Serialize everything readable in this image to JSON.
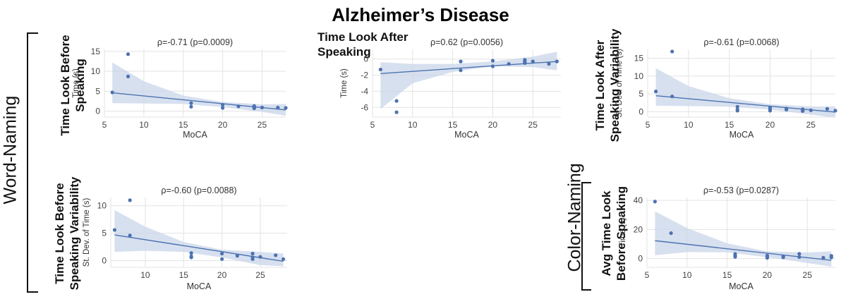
{
  "title": "Alzheimer’s Disease",
  "groups": {
    "word": "Word-Naming",
    "color": "Color-Naming"
  },
  "colors": {
    "line": "#4c72b0",
    "band": "#c9d5ea",
    "point": "#4c72b0",
    "grid": "#e3e3e3",
    "axis": "#888888"
  },
  "chart_data": [
    {
      "id": "p1",
      "type": "scatter",
      "title": "ρ=-0.71 (p=0.0009)",
      "row_label": [
        "Time Look Before",
        "Speaking"
      ],
      "xlabel": "MoCA",
      "ylabel": "Time (s)",
      "xlim": [
        5,
        28
      ],
      "ylim": [
        -1.5,
        15.5
      ],
      "xticks": [
        5,
        10,
        15,
        20,
        25
      ],
      "yticks": [
        0,
        5,
        10,
        15
      ],
      "points": [
        [
          6,
          4.7
        ],
        [
          8,
          14.3
        ],
        [
          8,
          8.7
        ],
        [
          16,
          2.0
        ],
        [
          16,
          1.1
        ],
        [
          20,
          1.6
        ],
        [
          20,
          0.8
        ],
        [
          22,
          1.2
        ],
        [
          24,
          1.3
        ],
        [
          24,
          0.9
        ],
        [
          24,
          0.7
        ],
        [
          25,
          0.9
        ],
        [
          27,
          0.9
        ],
        [
          28,
          0.8
        ]
      ],
      "fit": [
        [
          6,
          4.6
        ],
        [
          28,
          0.3
        ]
      ],
      "ci_upper": [
        [
          6,
          12.2
        ],
        [
          10,
          7.5
        ],
        [
          15,
          3.9
        ],
        [
          20,
          2.3
        ],
        [
          25,
          1.7
        ],
        [
          28,
          1.8
        ]
      ],
      "ci_lower": [
        [
          6,
          2.0
        ],
        [
          10,
          1.9
        ],
        [
          15,
          1.8
        ],
        [
          20,
          1.0
        ],
        [
          25,
          -0.2
        ],
        [
          28,
          -1.2
        ]
      ]
    },
    {
      "id": "p2",
      "type": "scatter",
      "title": "ρ=0.62 (p=0.0056)",
      "row_label": [
        "Time Look After",
        "Speaking"
      ],
      "xlabel": "MoCA",
      "ylabel": "Time (s)",
      "xlim": [
        5,
        28.5
      ],
      "ylim": [
        -7.2,
        1.2
      ],
      "xticks": [
        5,
        10,
        15,
        20,
        25
      ],
      "yticks": [
        -6,
        -4,
        -2,
        0
      ],
      "points": [
        [
          6,
          -1.3
        ],
        [
          8,
          -5.2
        ],
        [
          8,
          -6.6
        ],
        [
          16,
          -0.3
        ],
        [
          16,
          -1.4
        ],
        [
          20,
          -0.2
        ],
        [
          20,
          -0.9
        ],
        [
          22,
          -0.6
        ],
        [
          24,
          -0.1
        ],
        [
          24,
          -0.3
        ],
        [
          24,
          -0.5
        ],
        [
          25,
          -0.3
        ],
        [
          27,
          -0.6
        ],
        [
          28,
          -0.3
        ]
      ],
      "fit": [
        [
          6,
          -1.8
        ],
        [
          28,
          -0.3
        ]
      ],
      "ci_upper": [
        [
          6,
          -0.4
        ],
        [
          10,
          -0.6
        ],
        [
          15,
          -0.6
        ],
        [
          20,
          -0.3
        ],
        [
          25,
          0.3
        ],
        [
          28,
          0.9
        ]
      ],
      "ci_lower": [
        [
          6,
          -6.2
        ],
        [
          10,
          -3.0
        ],
        [
          15,
          -1.6
        ],
        [
          20,
          -0.9
        ],
        [
          25,
          -1.0
        ],
        [
          28,
          -1.4
        ]
      ]
    },
    {
      "id": "p3",
      "type": "scatter",
      "title": "ρ=-0.61 (p=0.0068)",
      "row_label": [
        "Time Look After",
        "Speaking Variability"
      ],
      "xlabel": "MoCA",
      "ylabel": "St. Dev. of Time (s)",
      "xlim": [
        5,
        28
      ],
      "ylim": [
        -1.5,
        17.5
      ],
      "xticks": [
        5,
        10,
        15,
        20,
        25
      ],
      "yticks": [
        0,
        5,
        10,
        15
      ],
      "points": [
        [
          6,
          5.7
        ],
        [
          8,
          16.9
        ],
        [
          8,
          4.3
        ],
        [
          16,
          1.4
        ],
        [
          16,
          0.6
        ],
        [
          16,
          0.3
        ],
        [
          20,
          1.2
        ],
        [
          20,
          0.7
        ],
        [
          20,
          0.3
        ],
        [
          22,
          0.9
        ],
        [
          22,
          0.6
        ],
        [
          24,
          0.7
        ],
        [
          24,
          0.4
        ],
        [
          24,
          0.2
        ],
        [
          25,
          0.4
        ],
        [
          27,
          0.8
        ],
        [
          28,
          0.3
        ]
      ],
      "fit": [
        [
          6,
          4.5
        ],
        [
          28,
          -0.1
        ]
      ],
      "ci_upper": [
        [
          6,
          12.2
        ],
        [
          10,
          7.2
        ],
        [
          15,
          3.8
        ],
        [
          20,
          2.1
        ],
        [
          25,
          1.5
        ],
        [
          28,
          1.5
        ]
      ],
      "ci_lower": [
        [
          6,
          1.7
        ],
        [
          10,
          1.6
        ],
        [
          15,
          1.4
        ],
        [
          20,
          0.6
        ],
        [
          25,
          -0.8
        ],
        [
          28,
          -1.7
        ]
      ]
    },
    {
      "id": "p4",
      "type": "scatter",
      "title": "ρ=-0.60 (p=0.0088)",
      "row_label": [
        "Time Look Before",
        "Speaking Variability"
      ],
      "xlabel": "MoCA",
      "ylabel": "St. Dev. of Time (s)",
      "xlim": [
        5.5,
        28.5
      ],
      "ylim": [
        -1.2,
        11.5
      ],
      "xticks": [
        10,
        15,
        20,
        25
      ],
      "yticks": [
        0,
        5,
        10
      ],
      "points": [
        [
          6,
          5.6
        ],
        [
          8,
          11.0
        ],
        [
          8,
          4.6
        ],
        [
          16,
          1.4
        ],
        [
          16,
          0.8
        ],
        [
          16,
          0.6
        ],
        [
          20,
          1.3
        ],
        [
          20,
          0.3
        ],
        [
          22,
          0.9
        ],
        [
          24,
          1.3
        ],
        [
          24,
          0.6
        ],
        [
          24,
          0.3
        ],
        [
          25,
          0.7
        ],
        [
          27,
          1.0
        ],
        [
          28,
          0.3
        ]
      ],
      "fit": [
        [
          6,
          4.7
        ],
        [
          28,
          -0.1
        ]
      ],
      "ci_upper": [
        [
          6,
          9.2
        ],
        [
          10,
          6.2
        ],
        [
          15,
          3.4
        ],
        [
          20,
          2.0
        ],
        [
          25,
          1.6
        ],
        [
          28,
          1.3
        ]
      ],
      "ci_lower": [
        [
          6,
          1.6
        ],
        [
          10,
          1.8
        ],
        [
          15,
          1.6
        ],
        [
          20,
          0.6
        ],
        [
          25,
          -0.8
        ],
        [
          28,
          -1.0
        ]
      ]
    },
    {
      "id": "p5",
      "type": "scatter",
      "title": "ρ=-0.53 (p=0.0287)",
      "row_label": [
        "Avg Time Look",
        "Before Speaking"
      ],
      "xlabel": "MoCA",
      "ylabel": "Time (s)",
      "xlim": [
        5,
        28.5
      ],
      "ylim": [
        -6,
        42
      ],
      "xticks": [
        5,
        10,
        15,
        20,
        25
      ],
      "yticks": [
        0,
        20,
        40
      ],
      "points": [
        [
          6,
          39.2
        ],
        [
          8,
          17.5
        ],
        [
          16,
          3.2
        ],
        [
          16,
          2.0
        ],
        [
          16,
          1.2
        ],
        [
          20,
          2.1
        ],
        [
          20,
          1.2
        ],
        [
          20,
          0.5
        ],
        [
          22,
          1.6
        ],
        [
          22,
          0.9
        ],
        [
          24,
          3.3
        ],
        [
          24,
          1.1
        ],
        [
          27,
          0.6
        ],
        [
          28,
          1.9
        ],
        [
          28,
          0.8
        ]
      ],
      "fit": [
        [
          6,
          12.3
        ],
        [
          28,
          -1.2
        ]
      ],
      "ci_upper": [
        [
          6,
          32.5
        ],
        [
          10,
          21.0
        ],
        [
          15,
          10.5
        ],
        [
          20,
          5.0
        ],
        [
          25,
          4.2
        ],
        [
          28,
          5.0
        ]
      ],
      "ci_lower": [
        [
          6,
          2.3
        ],
        [
          10,
          4.5
        ],
        [
          15,
          4.3
        ],
        [
          20,
          0.9
        ],
        [
          25,
          -3.0
        ],
        [
          28,
          -5.5
        ]
      ]
    }
  ]
}
